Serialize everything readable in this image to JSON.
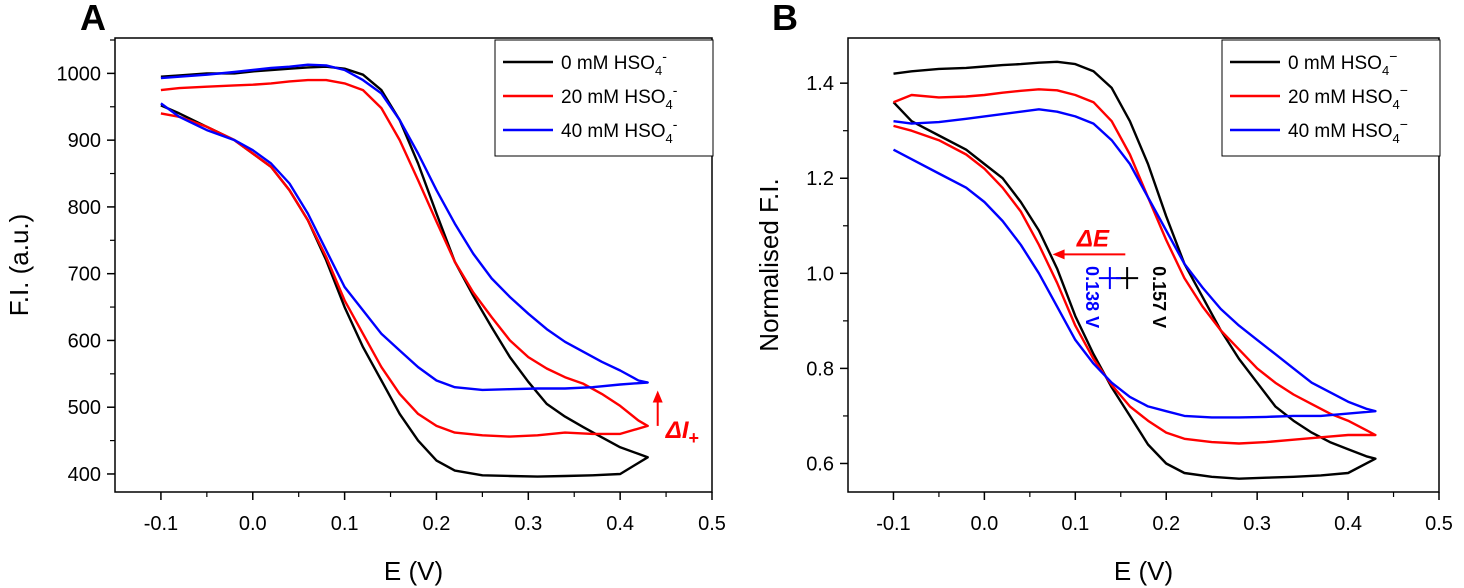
{
  "chart_data": [
    {
      "panel": "A",
      "type": "line",
      "xlabel": "E (V)",
      "ylabel": "F.I. (a.u.)",
      "xlim": [
        -0.15,
        0.5
      ],
      "ylim": [
        373,
        1053
      ],
      "xticks": [
        "-0.1",
        "0.0",
        "0.1",
        "0.2",
        "0.3",
        "0.4",
        "0.5"
      ],
      "yticks": [
        "400",
        "500",
        "600",
        "700",
        "800",
        "900",
        "1000"
      ],
      "legend_position": "top-right",
      "series": [
        {
          "name": "0 mM HSO4-",
          "name_main": "0 mM HSO",
          "name_sub": "4",
          "name_sup": "-",
          "color": "#000000",
          "x": [
            -0.1,
            -0.08,
            -0.05,
            -0.02,
            0.0,
            0.02,
            0.04,
            0.06,
            0.08,
            0.1,
            0.12,
            0.14,
            0.16,
            0.18,
            0.2,
            0.22,
            0.24,
            0.26,
            0.28,
            0.3,
            0.32,
            0.34,
            0.36,
            0.38,
            0.4,
            0.42,
            0.43,
            0.4,
            0.37,
            0.34,
            0.31,
            0.28,
            0.25,
            0.22,
            0.2,
            0.18,
            0.16,
            0.14,
            0.12,
            0.1,
            0.08,
            0.06,
            0.04,
            0.02,
            0.0,
            -0.02,
            -0.05,
            -0.08,
            -0.1
          ],
          "y": [
            995,
            997,
            1000,
            1000,
            1003,
            1005,
            1007,
            1009,
            1010,
            1007,
            998,
            975,
            930,
            865,
            790,
            718,
            667,
            620,
            575,
            538,
            505,
            486,
            470,
            455,
            440,
            430,
            425,
            400,
            398,
            397,
            396,
            397,
            398,
            405,
            420,
            450,
            490,
            540,
            590,
            650,
            720,
            780,
            825,
            860,
            880,
            900,
            920,
            940,
            952
          ]
        },
        {
          "name": "20 mM HSO4-",
          "name_main": "20 mM HSO",
          "name_sub": "4",
          "name_sup": "-",
          "color": "#ff0000",
          "x": [
            -0.1,
            -0.08,
            -0.05,
            -0.02,
            0.0,
            0.02,
            0.04,
            0.06,
            0.08,
            0.1,
            0.12,
            0.14,
            0.16,
            0.18,
            0.2,
            0.22,
            0.24,
            0.26,
            0.28,
            0.3,
            0.32,
            0.34,
            0.36,
            0.38,
            0.4,
            0.42,
            0.43,
            0.4,
            0.37,
            0.34,
            0.31,
            0.28,
            0.25,
            0.22,
            0.2,
            0.18,
            0.16,
            0.14,
            0.12,
            0.1,
            0.08,
            0.06,
            0.04,
            0.02,
            0.0,
            -0.02,
            -0.05,
            -0.08,
            -0.1
          ],
          "y": [
            975,
            978,
            980,
            982,
            983,
            985,
            988,
            990,
            990,
            985,
            975,
            948,
            900,
            840,
            778,
            718,
            672,
            635,
            600,
            575,
            558,
            545,
            535,
            520,
            502,
            480,
            472,
            460,
            460,
            462,
            458,
            456,
            458,
            462,
            472,
            490,
            520,
            560,
            610,
            660,
            725,
            780,
            825,
            860,
            880,
            900,
            920,
            935,
            940
          ]
        },
        {
          "name": "40 mM HSO4-",
          "name_main": "40 mM HSO",
          "name_sub": "4",
          "name_sup": "-",
          "color": "#0000ff",
          "x": [
            -0.1,
            -0.08,
            -0.05,
            -0.02,
            0.0,
            0.02,
            0.04,
            0.06,
            0.08,
            0.1,
            0.12,
            0.14,
            0.16,
            0.18,
            0.2,
            0.22,
            0.24,
            0.26,
            0.28,
            0.3,
            0.32,
            0.34,
            0.36,
            0.38,
            0.4,
            0.42,
            0.43,
            0.4,
            0.37,
            0.34,
            0.31,
            0.28,
            0.25,
            0.22,
            0.2,
            0.18,
            0.16,
            0.14,
            0.12,
            0.1,
            0.08,
            0.06,
            0.04,
            0.02,
            0.0,
            -0.02,
            -0.05,
            -0.08,
            -0.1
          ],
          "y": [
            993,
            995,
            998,
            1002,
            1005,
            1008,
            1010,
            1013,
            1012,
            1005,
            990,
            970,
            930,
            880,
            825,
            775,
            730,
            693,
            665,
            640,
            617,
            598,
            583,
            568,
            555,
            540,
            537,
            534,
            530,
            528,
            528,
            527,
            526,
            530,
            540,
            560,
            585,
            610,
            645,
            680,
            735,
            790,
            835,
            865,
            885,
            900,
            915,
            935,
            955
          ]
        }
      ],
      "annotations": [
        {
          "text_main": "ΔI",
          "text_sub": "+",
          "color": "#ff0000",
          "x": 0.43,
          "y_from": 472,
          "y_to": 525
        }
      ]
    },
    {
      "panel": "B",
      "type": "line",
      "xlabel": "E (V)",
      "ylabel": "Normalised F.I.",
      "xlim": [
        -0.15,
        0.5
      ],
      "ylim": [
        0.54,
        1.495
      ],
      "xticks": [
        "-0.1",
        "0.0",
        "0.1",
        "0.2",
        "0.3",
        "0.4",
        "0.5"
      ],
      "yticks": [
        "0.6",
        "0.8",
        "1.0",
        "1.2",
        "1.4"
      ],
      "legend_position": "top-right",
      "series": [
        {
          "name": "0 mM HSO4−",
          "name_main": "0 mM HSO",
          "name_sub": "4",
          "name_sup": "−",
          "color": "#000000",
          "x": [
            -0.1,
            -0.08,
            -0.05,
            -0.02,
            0.0,
            0.02,
            0.04,
            0.06,
            0.08,
            0.1,
            0.12,
            0.14,
            0.16,
            0.18,
            0.2,
            0.22,
            0.24,
            0.26,
            0.28,
            0.3,
            0.32,
            0.34,
            0.36,
            0.38,
            0.4,
            0.42,
            0.43,
            0.4,
            0.37,
            0.34,
            0.31,
            0.28,
            0.25,
            0.22,
            0.2,
            0.18,
            0.16,
            0.14,
            0.12,
            0.1,
            0.08,
            0.06,
            0.04,
            0.02,
            0.0,
            -0.02,
            -0.05,
            -0.08,
            -0.1
          ],
          "y": [
            1.42,
            1.425,
            1.43,
            1.432,
            1.435,
            1.438,
            1.44,
            1.443,
            1.445,
            1.44,
            1.425,
            1.39,
            1.32,
            1.23,
            1.12,
            1.02,
            0.95,
            0.88,
            0.82,
            0.77,
            0.72,
            0.69,
            0.665,
            0.645,
            0.63,
            0.615,
            0.61,
            0.58,
            0.575,
            0.572,
            0.57,
            0.568,
            0.572,
            0.58,
            0.6,
            0.64,
            0.7,
            0.76,
            0.83,
            0.91,
            1.01,
            1.09,
            1.15,
            1.2,
            1.23,
            1.26,
            1.29,
            1.32,
            1.36
          ]
        },
        {
          "name": "20 mM HSO4−",
          "name_main": "20 mM HSO",
          "name_sub": "4",
          "name_sup": "−",
          "color": "#ff0000",
          "x": [
            -0.1,
            -0.08,
            -0.05,
            -0.02,
            0.0,
            0.02,
            0.04,
            0.06,
            0.08,
            0.1,
            0.12,
            0.14,
            0.16,
            0.18,
            0.2,
            0.22,
            0.24,
            0.26,
            0.28,
            0.3,
            0.32,
            0.34,
            0.36,
            0.38,
            0.4,
            0.42,
            0.43,
            0.4,
            0.37,
            0.34,
            0.31,
            0.28,
            0.25,
            0.22,
            0.2,
            0.18,
            0.16,
            0.14,
            0.12,
            0.1,
            0.08,
            0.06,
            0.04,
            0.02,
            0.0,
            -0.02,
            -0.05,
            -0.08,
            -0.1
          ],
          "y": [
            1.36,
            1.375,
            1.37,
            1.372,
            1.375,
            1.38,
            1.384,
            1.387,
            1.385,
            1.375,
            1.36,
            1.32,
            1.25,
            1.16,
            1.07,
            0.99,
            0.93,
            0.88,
            0.84,
            0.8,
            0.77,
            0.745,
            0.725,
            0.705,
            0.69,
            0.67,
            0.66,
            0.66,
            0.655,
            0.65,
            0.645,
            0.642,
            0.645,
            0.652,
            0.665,
            0.69,
            0.72,
            0.765,
            0.82,
            0.89,
            0.98,
            1.06,
            1.13,
            1.18,
            1.22,
            1.25,
            1.28,
            1.3,
            1.31
          ]
        },
        {
          "name": "40 mM HSO4−",
          "name_main": "40 mM HSO",
          "name_sub": "4",
          "name_sup": "−",
          "color": "#0000ff",
          "x": [
            -0.1,
            -0.08,
            -0.05,
            -0.02,
            0.0,
            0.02,
            0.04,
            0.06,
            0.08,
            0.1,
            0.12,
            0.14,
            0.16,
            0.18,
            0.2,
            0.22,
            0.24,
            0.26,
            0.28,
            0.3,
            0.32,
            0.34,
            0.36,
            0.38,
            0.4,
            0.42,
            0.43,
            0.4,
            0.37,
            0.34,
            0.31,
            0.28,
            0.25,
            0.22,
            0.2,
            0.18,
            0.16,
            0.14,
            0.12,
            0.1,
            0.08,
            0.06,
            0.04,
            0.02,
            0.0,
            -0.02,
            -0.05,
            -0.08,
            -0.1
          ],
          "y": [
            1.32,
            1.315,
            1.318,
            1.325,
            1.33,
            1.335,
            1.34,
            1.345,
            1.34,
            1.33,
            1.315,
            1.28,
            1.23,
            1.16,
            1.09,
            1.02,
            0.97,
            0.925,
            0.89,
            0.86,
            0.83,
            0.8,
            0.77,
            0.75,
            0.73,
            0.715,
            0.71,
            0.705,
            0.7,
            0.7,
            0.698,
            0.697,
            0.697,
            0.7,
            0.71,
            0.72,
            0.74,
            0.77,
            0.81,
            0.86,
            0.93,
            1.0,
            1.06,
            1.11,
            1.15,
            1.18,
            1.21,
            1.24,
            1.26
          ]
        }
      ],
      "annotations": [
        {
          "text": "ΔE",
          "color": "#ff0000",
          "x_from": 0.155,
          "x_to": 0.075,
          "y": 1.065
        },
        {
          "text": "0.157 V",
          "color": "#000000",
          "x": 0.157,
          "y": 0.99
        },
        {
          "text": "0.138 V",
          "color": "#0000ff",
          "x": 0.138,
          "y": 0.99
        }
      ]
    }
  ]
}
